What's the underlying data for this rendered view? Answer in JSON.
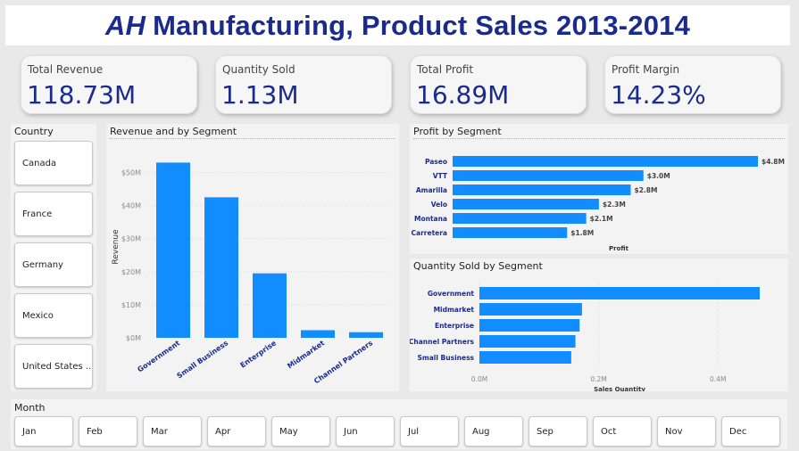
{
  "title": {
    "brand": "AH",
    "rest": "Manufacturing, Product Sales 2013-2014"
  },
  "kpis": [
    {
      "label": "Total Revenue",
      "value": "118.73M"
    },
    {
      "label": "Quantity Sold",
      "value": "1.13M"
    },
    {
      "label": "Total Profit",
      "value": "16.89M"
    },
    {
      "label": "Profit Margin",
      "value": "14.23%"
    }
  ],
  "country_slicer": {
    "title": "Country",
    "items": [
      "Canada",
      "France",
      "Germany",
      "Mexico",
      "United States ..."
    ]
  },
  "month_slicer": {
    "title": "Month",
    "items": [
      "Jan",
      "Feb",
      "Mar",
      "Apr",
      "May",
      "Jun",
      "Jul",
      "Aug",
      "Sep",
      "Oct",
      "Nov",
      "Dec"
    ]
  },
  "colors": {
    "bar": "#118dff",
    "title": "#1a2b8c",
    "category": "#1a2b8c"
  },
  "chart_data": [
    {
      "type": "bar",
      "title": "Revenue and by Segment",
      "xlabel": "",
      "ylabel": "Revenue",
      "categories": [
        "Government",
        "Small Business",
        "Enterprise",
        "Midmarket",
        "Channel Partners"
      ],
      "values": [
        53,
        42.5,
        19.5,
        2.3,
        1.7
      ],
      "ylim": [
        0,
        55
      ],
      "yticks": [
        0,
        10,
        20,
        30,
        40,
        50
      ],
      "ytick_labels": [
        "$0M",
        "$10M",
        "$20M",
        "$30M",
        "$40M",
        "$50M"
      ],
      "grid": true
    },
    {
      "type": "bar",
      "orientation": "horizontal",
      "title": "Profit by Segment",
      "xlabel": "Profit",
      "categories": [
        "Paseo",
        "VTT",
        "Amarilla",
        "Velo",
        "Montana",
        "Carretera"
      ],
      "values": [
        4.8,
        3.0,
        2.8,
        2.3,
        2.1,
        1.8
      ],
      "data_labels": [
        "$4.8M",
        "$3.0M",
        "$2.8M",
        "$2.3M",
        "$2.1M",
        "$1.8M"
      ],
      "xlim": [
        0,
        4.8
      ]
    },
    {
      "type": "bar",
      "orientation": "horizontal",
      "title": "Quantity Sold by Segment",
      "xlabel": "Sales Quantity",
      "categories": [
        "Government",
        "Midmarket",
        "Enterprise",
        "Channel Partners",
        "Small Business"
      ],
      "values": [
        0.47,
        0.172,
        0.168,
        0.161,
        0.154
      ],
      "xlim": [
        0,
        0.47
      ],
      "xticks": [
        0,
        0.2,
        0.4
      ],
      "xtick_labels": [
        "0.0M",
        "0.2M",
        "0.4M"
      ],
      "grid": true
    }
  ]
}
